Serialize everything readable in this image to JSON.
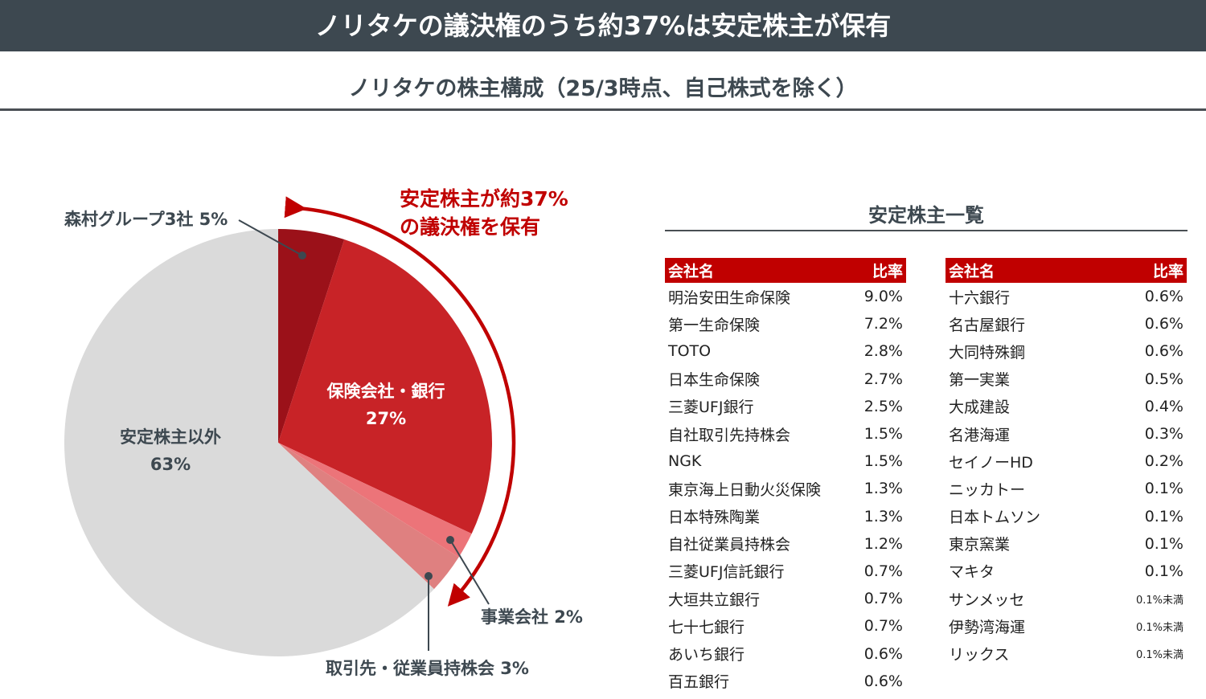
{
  "header": {
    "title": "ノリタケの議決権のうち約37%は安定株主が保有",
    "subtitle": "ノリタケの株主構成（25/3時点、自己株式を除く）"
  },
  "chart_data": {
    "type": "pie",
    "start": "12 o'clock, clockwise",
    "slices": [
      {
        "label": "森村グループ3社",
        "value": 5,
        "display": "森村グループ3社 5%",
        "color": "#9b1119"
      },
      {
        "label": "保険会社・銀行",
        "value": 27,
        "display": "27%",
        "color": "#c82327"
      },
      {
        "label": "事業会社",
        "value": 2,
        "display": "事業会社 2%",
        "color": "#ec7479"
      },
      {
        "label": "取引先・従業員持株会",
        "value": 3,
        "display": "取引先・従業員持株会 3%",
        "color": "#df8080"
      },
      {
        "label": "安定株主以外",
        "value": 63,
        "display": "63%",
        "color": "#dadada"
      }
    ],
    "annotation": {
      "line1": "安定株主が約37%",
      "line2": "の議決権を保有",
      "color": "#c00000"
    }
  },
  "list": {
    "title": "安定株主一覧",
    "col_name": "会社名",
    "col_ratio": "比率",
    "left": [
      [
        "明治安田生命保険",
        "9.0%"
      ],
      [
        "第一生命保険",
        "7.2%"
      ],
      [
        "TOTO",
        "2.8%"
      ],
      [
        "日本生命保険",
        "2.7%"
      ],
      [
        "三菱UFJ銀行",
        "2.5%"
      ],
      [
        "自社取引先持株会",
        "1.5%"
      ],
      [
        "NGK",
        "1.5%"
      ],
      [
        "東京海上日動火災保険",
        "1.3%"
      ],
      [
        "日本特殊陶業",
        "1.3%"
      ],
      [
        "自社従業員持株会",
        "1.2%"
      ],
      [
        "三菱UFJ信託銀行",
        "0.7%"
      ],
      [
        "大垣共立銀行",
        "0.7%"
      ],
      [
        "七十七銀行",
        "0.7%"
      ],
      [
        "あいち銀行",
        "0.6%"
      ],
      [
        "百五銀行",
        "0.6%"
      ]
    ],
    "right": [
      [
        "十六銀行",
        "0.6%"
      ],
      [
        "名古屋銀行",
        "0.6%"
      ],
      [
        "大同特殊鋼",
        "0.6%"
      ],
      [
        "第一実業",
        "0.5%"
      ],
      [
        "大成建設",
        "0.4%"
      ],
      [
        "名港海運",
        "0.3%"
      ],
      [
        "セイノーHD",
        "0.2%"
      ],
      [
        "ニッカトー",
        "0.1%"
      ],
      [
        "日本トムソン",
        "0.1%"
      ],
      [
        "東京窯業",
        "0.1%"
      ],
      [
        "マキタ",
        "0.1%"
      ],
      [
        "サンメッセ",
        "0.1%未満"
      ],
      [
        "伊勢湾海運",
        "0.1%未満"
      ],
      [
        "リックス",
        "0.1%未満"
      ]
    ]
  }
}
